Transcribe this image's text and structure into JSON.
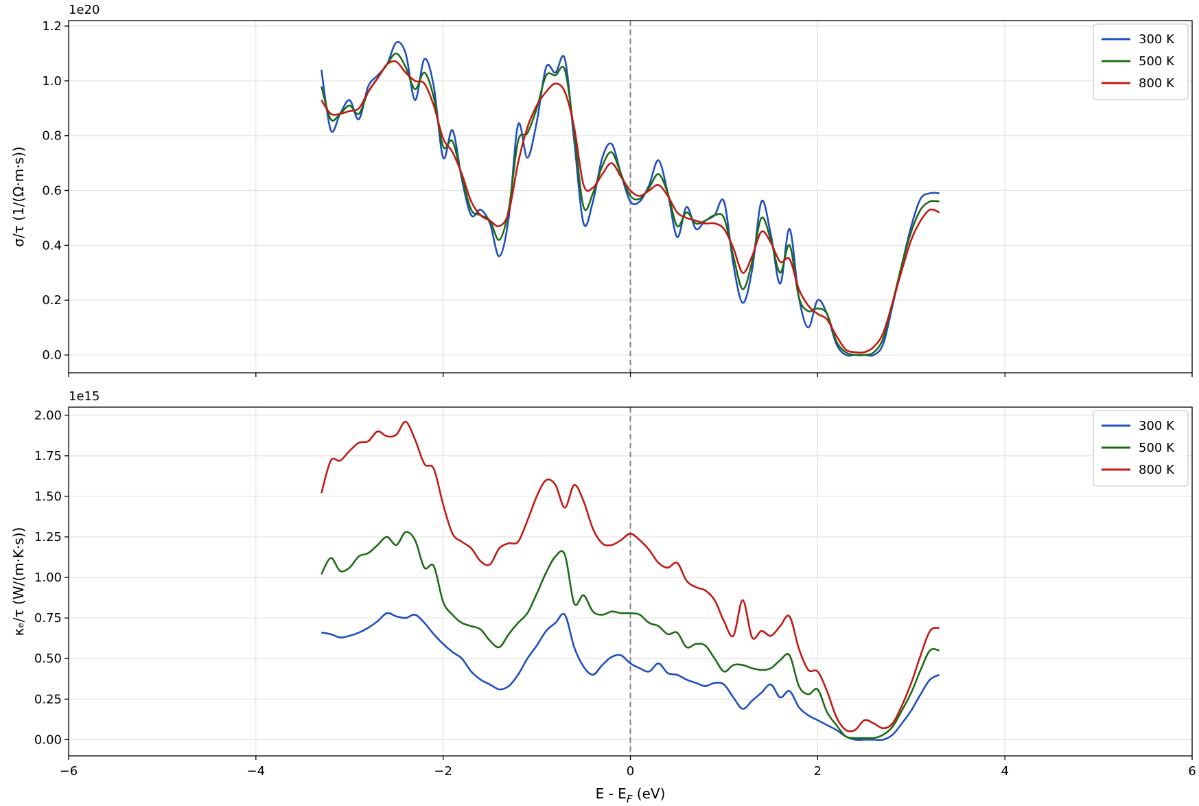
{
  "figure": {
    "shared_xlabel": "E - E_F (eV)"
  },
  "colors": {
    "300 K": "#1f4fbf",
    "500 K": "#1e6b16",
    "800 K": "#c01a14",
    "grid": "#e3e3e3",
    "fermi_line": "#808080"
  },
  "chart_data": [
    {
      "type": "line",
      "title": "",
      "xlabel": "",
      "ylabel": "σ/τ (1/(Ω·m·s))",
      "y_offset_text": "1e20",
      "xlim": [
        -6,
        6
      ],
      "ylim": [
        -0.065,
        1.22
      ],
      "xticks": [
        -6,
        -4,
        -2,
        0,
        2,
        4,
        6
      ],
      "xtick_labels": [],
      "yticks": [
        0.0,
        0.2,
        0.4,
        0.6,
        0.8,
        1.0,
        1.2
      ],
      "ytick_labels": [
        "0.0",
        "0.2",
        "0.4",
        "0.6",
        "0.8",
        "1.0",
        "1.2"
      ],
      "grid": true,
      "vline_x": 0,
      "legend": {
        "position": "top-right",
        "entries": [
          "300 K",
          "500 K",
          "800 K"
        ]
      },
      "x": [
        -3.3,
        -3.2,
        -3.1,
        -3.0,
        -2.9,
        -2.8,
        -2.7,
        -2.6,
        -2.5,
        -2.4,
        -2.3,
        -2.2,
        -2.1,
        -2.0,
        -1.9,
        -1.8,
        -1.7,
        -1.6,
        -1.5,
        -1.4,
        -1.3,
        -1.2,
        -1.1,
        -1.0,
        -0.9,
        -0.8,
        -0.7,
        -0.6,
        -0.5,
        -0.4,
        -0.3,
        -0.2,
        -0.1,
        0.0,
        0.1,
        0.2,
        0.3,
        0.4,
        0.5,
        0.6,
        0.7,
        0.8,
        0.9,
        1.0,
        1.1,
        1.2,
        1.3,
        1.4,
        1.5,
        1.6,
        1.7,
        1.8,
        1.9,
        2.0,
        2.1,
        2.2,
        2.3,
        2.4,
        2.5,
        2.6,
        2.7,
        2.8,
        2.9,
        3.0,
        3.1,
        3.2,
        3.3
      ],
      "series": [
        {
          "name": "300 K",
          "values": [
            1.04,
            0.82,
            0.88,
            0.93,
            0.86,
            0.98,
            1.02,
            1.06,
            1.14,
            1.1,
            0.93,
            1.08,
            0.98,
            0.72,
            0.82,
            0.64,
            0.51,
            0.53,
            0.48,
            0.36,
            0.5,
            0.84,
            0.72,
            0.85,
            1.05,
            1.03,
            1.08,
            0.78,
            0.48,
            0.56,
            0.72,
            0.77,
            0.66,
            0.56,
            0.56,
            0.62,
            0.71,
            0.59,
            0.43,
            0.54,
            0.46,
            0.49,
            0.51,
            0.56,
            0.33,
            0.19,
            0.31,
            0.56,
            0.44,
            0.26,
            0.46,
            0.21,
            0.1,
            0.2,
            0.15,
            0.04,
            0.0,
            0.0,
            0.0,
            0.0,
            0.04,
            0.18,
            0.33,
            0.47,
            0.57,
            0.59,
            0.59
          ]
        },
        {
          "name": "500 K",
          "values": [
            0.98,
            0.86,
            0.88,
            0.91,
            0.88,
            0.96,
            1.01,
            1.06,
            1.1,
            1.05,
            0.97,
            1.03,
            0.94,
            0.76,
            0.78,
            0.65,
            0.53,
            0.51,
            0.49,
            0.42,
            0.53,
            0.78,
            0.81,
            0.9,
            1.02,
            1.02,
            1.04,
            0.81,
            0.54,
            0.59,
            0.69,
            0.74,
            0.66,
            0.58,
            0.57,
            0.61,
            0.66,
            0.59,
            0.47,
            0.52,
            0.48,
            0.49,
            0.51,
            0.5,
            0.36,
            0.24,
            0.34,
            0.5,
            0.42,
            0.3,
            0.4,
            0.21,
            0.16,
            0.17,
            0.15,
            0.05,
            0.01,
            0.0,
            0.0,
            0.01,
            0.06,
            0.19,
            0.33,
            0.45,
            0.53,
            0.56,
            0.56
          ]
        },
        {
          "name": "800 K",
          "values": [
            0.93,
            0.88,
            0.88,
            0.89,
            0.9,
            0.96,
            1.01,
            1.06,
            1.07,
            1.03,
            1.0,
            0.99,
            0.91,
            0.79,
            0.74,
            0.66,
            0.56,
            0.51,
            0.49,
            0.47,
            0.52,
            0.7,
            0.83,
            0.91,
            0.96,
            0.99,
            0.96,
            0.83,
            0.62,
            0.61,
            0.66,
            0.7,
            0.65,
            0.6,
            0.58,
            0.6,
            0.62,
            0.58,
            0.52,
            0.5,
            0.49,
            0.48,
            0.48,
            0.46,
            0.39,
            0.3,
            0.36,
            0.45,
            0.41,
            0.34,
            0.35,
            0.24,
            0.18,
            0.15,
            0.13,
            0.07,
            0.02,
            0.01,
            0.01,
            0.03,
            0.08,
            0.19,
            0.31,
            0.42,
            0.49,
            0.53,
            0.52
          ]
        }
      ]
    },
    {
      "type": "line",
      "title": "",
      "xlabel": "E - E_F (eV)",
      "ylabel": "κₑ/τ (W/(m·K·s))",
      "y_offset_text": "1e15",
      "xlim": [
        -6,
        6
      ],
      "ylim": [
        -0.1,
        2.05
      ],
      "xticks": [
        -6,
        -4,
        -2,
        0,
        2,
        4,
        6
      ],
      "xtick_labels": [
        "−6",
        "−4",
        "−2",
        "0",
        "2",
        "4",
        "6"
      ],
      "yticks": [
        0.0,
        0.25,
        0.5,
        0.75,
        1.0,
        1.25,
        1.5,
        1.75,
        2.0
      ],
      "ytick_labels": [
        "0.00",
        "0.25",
        "0.50",
        "0.75",
        "1.00",
        "1.25",
        "1.50",
        "1.75",
        "2.00"
      ],
      "grid": true,
      "vline_x": 0,
      "legend": {
        "position": "top-right",
        "entries": [
          "300 K",
          "500 K",
          "800 K"
        ]
      },
      "x": [
        -3.3,
        -3.2,
        -3.1,
        -3.0,
        -2.9,
        -2.8,
        -2.7,
        -2.6,
        -2.5,
        -2.4,
        -2.3,
        -2.2,
        -2.1,
        -2.0,
        -1.9,
        -1.8,
        -1.7,
        -1.6,
        -1.5,
        -1.4,
        -1.3,
        -1.2,
        -1.1,
        -1.0,
        -0.9,
        -0.8,
        -0.7,
        -0.6,
        -0.5,
        -0.4,
        -0.3,
        -0.2,
        -0.1,
        0.0,
        0.1,
        0.2,
        0.3,
        0.4,
        0.5,
        0.6,
        0.7,
        0.8,
        0.9,
        1.0,
        1.1,
        1.2,
        1.3,
        1.4,
        1.5,
        1.6,
        1.7,
        1.8,
        1.9,
        2.0,
        2.1,
        2.2,
        2.3,
        2.4,
        2.5,
        2.6,
        2.7,
        2.8,
        2.9,
        3.0,
        3.1,
        3.2,
        3.3
      ],
      "series": [
        {
          "name": "300 K",
          "values": [
            0.66,
            0.65,
            0.63,
            0.64,
            0.66,
            0.69,
            0.73,
            0.78,
            0.76,
            0.75,
            0.77,
            0.72,
            0.65,
            0.59,
            0.54,
            0.5,
            0.42,
            0.37,
            0.34,
            0.31,
            0.33,
            0.4,
            0.5,
            0.58,
            0.67,
            0.72,
            0.77,
            0.57,
            0.45,
            0.4,
            0.46,
            0.51,
            0.52,
            0.47,
            0.44,
            0.42,
            0.47,
            0.41,
            0.4,
            0.37,
            0.35,
            0.33,
            0.35,
            0.34,
            0.26,
            0.19,
            0.24,
            0.29,
            0.34,
            0.26,
            0.3,
            0.2,
            0.15,
            0.12,
            0.09,
            0.06,
            0.02,
            0.0,
            0.0,
            0.0,
            0.0,
            0.03,
            0.1,
            0.18,
            0.28,
            0.37,
            0.4
          ]
        },
        {
          "name": "500 K",
          "values": [
            1.02,
            1.12,
            1.04,
            1.06,
            1.13,
            1.15,
            1.2,
            1.25,
            1.2,
            1.28,
            1.23,
            1.06,
            1.07,
            0.85,
            0.77,
            0.72,
            0.7,
            0.68,
            0.61,
            0.57,
            0.65,
            0.72,
            0.78,
            0.9,
            1.03,
            1.13,
            1.14,
            0.84,
            0.89,
            0.79,
            0.77,
            0.79,
            0.78,
            0.78,
            0.77,
            0.72,
            0.7,
            0.65,
            0.66,
            0.57,
            0.59,
            0.58,
            0.5,
            0.42,
            0.46,
            0.46,
            0.44,
            0.43,
            0.44,
            0.49,
            0.52,
            0.33,
            0.28,
            0.31,
            0.17,
            0.09,
            0.02,
            0.01,
            0.01,
            0.01,
            0.03,
            0.08,
            0.18,
            0.29,
            0.43,
            0.55,
            0.55
          ]
        },
        {
          "name": "800 K",
          "values": [
            1.52,
            1.72,
            1.72,
            1.78,
            1.83,
            1.84,
            1.9,
            1.87,
            1.88,
            1.96,
            1.85,
            1.7,
            1.67,
            1.45,
            1.27,
            1.22,
            1.18,
            1.1,
            1.08,
            1.18,
            1.21,
            1.22,
            1.35,
            1.5,
            1.6,
            1.57,
            1.43,
            1.57,
            1.47,
            1.3,
            1.21,
            1.2,
            1.23,
            1.27,
            1.23,
            1.17,
            1.09,
            1.06,
            1.09,
            0.98,
            0.94,
            0.92,
            0.86,
            0.73,
            0.64,
            0.86,
            0.63,
            0.67,
            0.64,
            0.7,
            0.76,
            0.56,
            0.43,
            0.42,
            0.3,
            0.14,
            0.06,
            0.06,
            0.12,
            0.1,
            0.07,
            0.1,
            0.21,
            0.35,
            0.52,
            0.67,
            0.69
          ]
        }
      ]
    }
  ]
}
